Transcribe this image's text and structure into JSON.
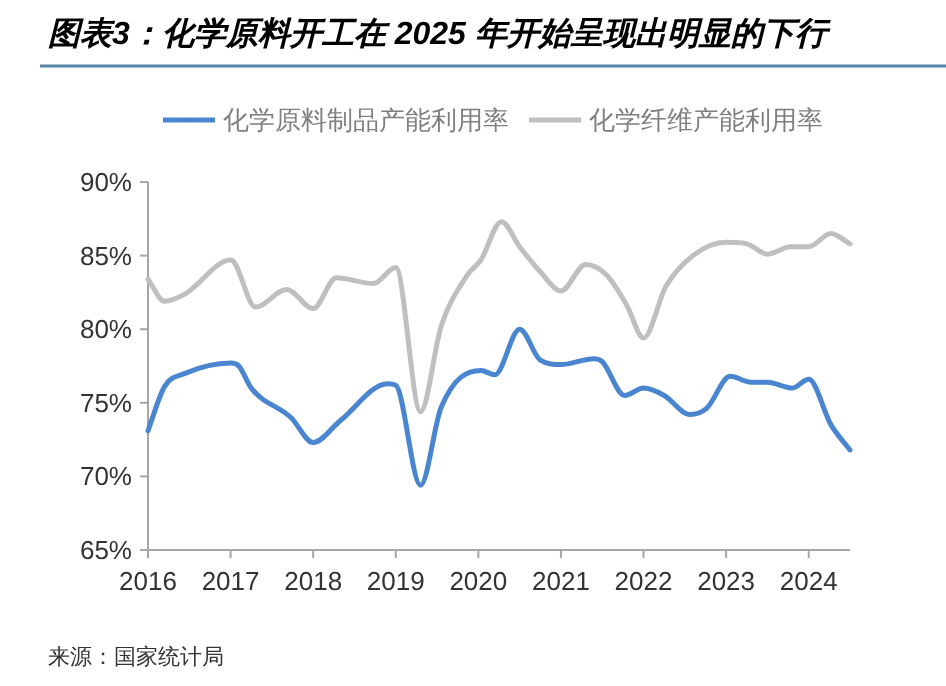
{
  "chart_data": {
    "type": "line",
    "title": "图表3：化学原料开工在 2025 年开始呈现出明显的下行",
    "legend": "top",
    "grid": false,
    "marker": "none",
    "line_style": "solid",
    "xlim": [
      2016,
      2024.5
    ],
    "xticks": [
      2016,
      2017,
      2018,
      2019,
      2020,
      2021,
      2022,
      2023,
      2024
    ],
    "ylim": [
      65,
      90
    ],
    "yticks": [
      {
        "value": 65,
        "label": "65%"
      },
      {
        "value": 70,
        "label": "70%"
      },
      {
        "value": 75,
        "label": "75%"
      },
      {
        "value": 80,
        "label": "80%"
      },
      {
        "value": 85,
        "label": "85%"
      },
      {
        "value": 90,
        "label": "90%"
      }
    ],
    "series": [
      {
        "name": "化学原料制品产能利用率",
        "color": "#4a86d0",
        "x": [
          2016.0,
          2016.2,
          2016.45,
          2017.0,
          2017.1,
          2017.25,
          2017.73,
          2018.0,
          2018.33,
          2018.9,
          2019.0,
          2019.3,
          2019.55,
          2020.03,
          2020.2,
          2020.5,
          2020.75,
          2021.0,
          2021.4,
          2021.5,
          2021.77,
          2022.0,
          2022.25,
          2022.56,
          2022.76,
          2023.05,
          2023.3,
          2023.5,
          2023.8,
          2024.0,
          2024.27,
          2024.5
        ],
        "values": [
          73.1,
          76.1,
          77.0,
          77.7,
          77.5,
          76.0,
          74.0,
          72.3,
          73.8,
          76.3,
          76.2,
          69.4,
          74.7,
          77.2,
          76.9,
          80.0,
          77.9,
          77.6,
          78.0,
          77.8,
          75.5,
          76.0,
          75.5,
          74.2,
          74.6,
          76.8,
          76.4,
          76.4,
          76.0,
          76.6,
          73.5,
          71.8
        ]
      },
      {
        "name": "化学纤维产能利用率",
        "color": "#bfbfbf",
        "x": [
          2016.0,
          2016.2,
          2016.45,
          2017.0,
          2017.05,
          2017.3,
          2017.68,
          2018.0,
          2018.28,
          2018.73,
          2019.0,
          2019.3,
          2019.55,
          2019.87,
          2020.03,
          2020.28,
          2020.5,
          2020.75,
          2021.0,
          2021.3,
          2021.55,
          2021.8,
          2022.0,
          2022.27,
          2022.6,
          2023.0,
          2023.25,
          2023.5,
          2023.78,
          2024.0,
          2024.27,
          2024.5
        ],
        "values": [
          83.4,
          81.9,
          82.4,
          84.7,
          84.5,
          81.5,
          82.7,
          81.4,
          83.5,
          83.1,
          84.2,
          74.4,
          80.2,
          83.7,
          84.7,
          87.3,
          85.6,
          83.9,
          82.6,
          84.4,
          83.7,
          81.6,
          79.4,
          82.9,
          85.0,
          85.9,
          85.8,
          85.1,
          85.6,
          85.6,
          86.5,
          85.8
        ]
      }
    ],
    "annotations": [
      "来源：国家统计局"
    ]
  }
}
